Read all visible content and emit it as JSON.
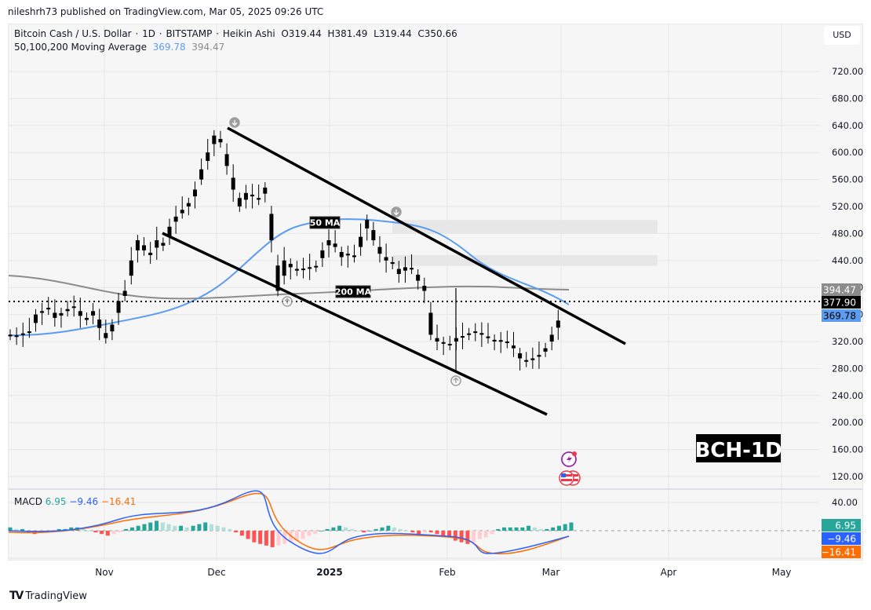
{
  "header": {
    "published": "nileshrh73 published on TradingView.com, Mar 05, 2025 09:26 UTC"
  },
  "legend": {
    "symbol": "Bitcoin Cash / U.S. Dollar",
    "interval": "1D",
    "exchange": "BITSTAMP",
    "chart_type": "Heikin Ashi",
    "open": "O319.44",
    "high": "H381.49",
    "low": "L319.44",
    "close": "C350.66",
    "ma_label": "50,100,200 Moving Average",
    "ma50_value": "369.78",
    "ma200_value": "394.47"
  },
  "currency_button": "USD",
  "price_axis": {
    "ticks": [
      "720.00",
      "680.00",
      "640.00",
      "600.00",
      "560.00",
      "520.00",
      "480.00",
      "440.00",
      "400.00",
      "360.00",
      "320.00",
      "280.00",
      "240.00",
      "200.00",
      "160.00",
      "120.00"
    ],
    "badges": {
      "ma200": "394.47",
      "last": "377.90",
      "ma50": "369.78"
    }
  },
  "macd_axis": {
    "tick_top": "40.00",
    "badges": {
      "histogram": "6.95",
      "macd": "−9.46",
      "signal": "−16.41"
    }
  },
  "macd_legend": {
    "label": "MACD",
    "histogram": "6.95",
    "macd": "−9.46",
    "signal": "−16.41"
  },
  "time_axis": [
    "Nov",
    "Dec",
    "2025",
    "Feb",
    "Mar",
    "Apr",
    "May"
  ],
  "annotations": {
    "ma50_label": "50 MA",
    "ma200_label": "200 MA",
    "watermark": "BCH-1D"
  },
  "footer": {
    "brand": "TradingView"
  },
  "colors": {
    "ma50": "#5b9cf0",
    "ma200": "#8c8c8c",
    "macd_line": "#2962ff",
    "signal_line": "#ff6d00",
    "hist_up": "#26a69a",
    "hist_up_light": "#b2dfdb",
    "hist_down": "#ff5252",
    "hist_down_light": "#ffcdd2"
  },
  "chart_data": {
    "type": "candlestick",
    "title": "Bitcoin Cash / U.S. Dollar · 1D · BITSTAMP · Heikin Ashi",
    "xlabel": "",
    "ylabel": "USD",
    "ylim": [
      100,
      740
    ],
    "x_ticks": [
      "Nov",
      "Dec",
      "2025",
      "Feb",
      "Mar",
      "Apr",
      "May"
    ],
    "last_candle": {
      "open": 319.44,
      "high": 381.49,
      "low": 319.44,
      "close": 350.66
    },
    "last_price": 377.9,
    "moving_averages": {
      "ma50": 369.78,
      "ma200": 394.47
    },
    "approx_closes": [
      330,
      328,
      332,
      335,
      360,
      365,
      370,
      355,
      362,
      368,
      372,
      358,
      352,
      365,
      340,
      325,
      345,
      380,
      395,
      440,
      470,
      455,
      448,
      470,
      462,
      490,
      505,
      515,
      525,
      545,
      575,
      600,
      625,
      615,
      580,
      545,
      520,
      540,
      535,
      530,
      548,
      470,
      395,
      440,
      430,
      425,
      428,
      430,
      432,
      455,
      470,
      460,
      445,
      450,
      445,
      475,
      500,
      470,
      450,
      440,
      435,
      420,
      430,
      428,
      410,
      395,
      330,
      320,
      318,
      315,
      325,
      328,
      332,
      335,
      330,
      325,
      320,
      322,
      318,
      310,
      295,
      290,
      295,
      300,
      310,
      330,
      351
    ],
    "trendlines": [
      {
        "name": "upper channel",
        "from_price": 632,
        "to_price": 316
      },
      {
        "name": "lower channel",
        "from_price": 480,
        "to_price": 215
      }
    ],
    "resistance_zones": [
      [
        480,
        500
      ],
      [
        432,
        448
      ]
    ],
    "macd": {
      "macd": -9.46,
      "signal": -16.41,
      "histogram": 6.95
    }
  }
}
